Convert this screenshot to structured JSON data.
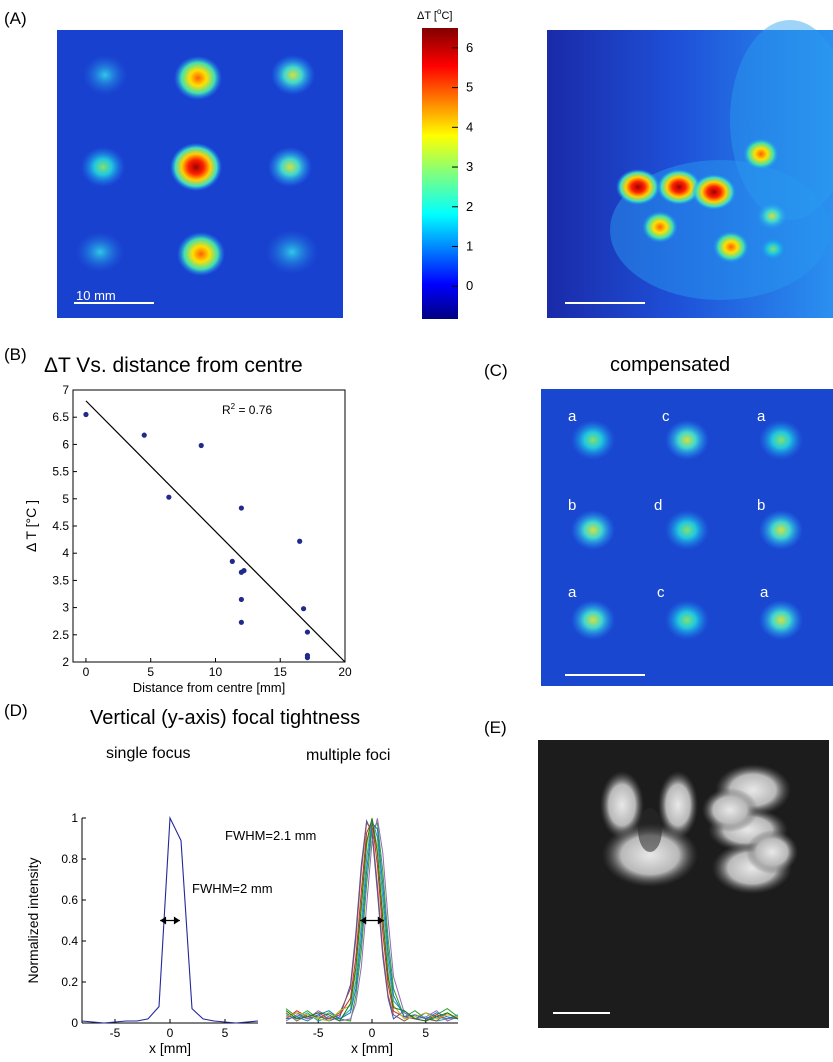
{
  "panels": {
    "A": {
      "label": "(A)",
      "scalebar": "10 mm",
      "colorbar_title": "ΔT [",
      "colorbar_unit_sup": "o",
      "colorbar_unit_end": "C]",
      "colorbar_ticks": [
        "6",
        "5",
        "4",
        "3",
        "2",
        "1",
        "0"
      ]
    },
    "B": {
      "label": "(B)",
      "title": "ΔT Vs. distance from centre",
      "r2": "R² = 0.76"
    },
    "C": {
      "label": "(C)",
      "title": "compensated",
      "letters": [
        "a",
        "c",
        "a",
        "b",
        "d",
        "b",
        "a",
        "c",
        "a"
      ]
    },
    "D": {
      "label": "(D)",
      "title": "Vertical (y-axis) focal tightness",
      "left_subtitle": "single focus",
      "right_subtitle": "multiple foci",
      "fwhm_left": "FWHM=2 mm",
      "fwhm_right": "FWHM=2.1 mm"
    },
    "E": {
      "label": "(E)"
    }
  },
  "chart_data": [
    {
      "type": "scatter",
      "title": "ΔT Vs. distance from centre",
      "xlabel": "Distance from centre [mm]",
      "ylabel": "Δ T [°C ]",
      "xlim": [
        -1,
        20
      ],
      "ylim": [
        2,
        7
      ],
      "xticks": [
        "0",
        "5",
        "10",
        "15",
        "20"
      ],
      "yticks": [
        "2",
        "2.5",
        "3",
        "3.5",
        "4",
        "4.5",
        "5",
        "5.5",
        "6",
        "6.5",
        "7"
      ],
      "points": [
        [
          0,
          6.55
        ],
        [
          4.5,
          6.17
        ],
        [
          6.4,
          5.03
        ],
        [
          8.9,
          5.98
        ],
        [
          11.3,
          3.85
        ],
        [
          12,
          4.83
        ],
        [
          12,
          3.65
        ],
        [
          12.2,
          3.68
        ],
        [
          12,
          3.15
        ],
        [
          12,
          2.73
        ],
        [
          16.5,
          4.22
        ],
        [
          16.8,
          2.98
        ],
        [
          17.1,
          2.55
        ],
        [
          17.1,
          2.12
        ],
        [
          17.1,
          2.08
        ]
      ],
      "fit_line": [
        [
          0,
          6.8
        ],
        [
          20,
          2.0
        ]
      ],
      "annotation": "R² = 0.76"
    },
    {
      "type": "line",
      "subtitle": "single focus",
      "xlabel": "x [mm]",
      "ylabel": "Normalized intensity",
      "xlim": [
        -8,
        8
      ],
      "ylim": [
        0,
        1
      ],
      "xticks": [
        "-5",
        "0",
        "5"
      ],
      "yticks": [
        "0",
        "0.2",
        "0.4",
        "0.6",
        "0.8",
        "1"
      ],
      "series": [
        {
          "x": [
            -8,
            -6,
            -4,
            -3,
            -2,
            -1,
            0,
            1,
            2,
            3,
            4,
            6,
            8
          ],
          "y": [
            0.01,
            0,
            0.01,
            0.01,
            0.02,
            0.08,
            1.0,
            0.89,
            0.07,
            0.02,
            0.01,
            0,
            0.01
          ]
        }
      ],
      "annotation": "FWHM=2 mm"
    },
    {
      "type": "line",
      "subtitle": "multiple foci",
      "xlabel": "x [mm]",
      "xlim": [
        -8,
        8
      ],
      "ylim": [
        0,
        1
      ],
      "xticks": [
        "-5",
        "0",
        "5"
      ],
      "series_count": 9,
      "series_colors": [
        "#3b4cc0",
        "#2ca02c",
        "#d62728",
        "#17a2b8",
        "#9467bd",
        "#8c564b",
        "#1f77b4",
        "#bcbd22",
        "#1a7a1a"
      ],
      "annotation": "FWHM=2.1 mm"
    }
  ]
}
